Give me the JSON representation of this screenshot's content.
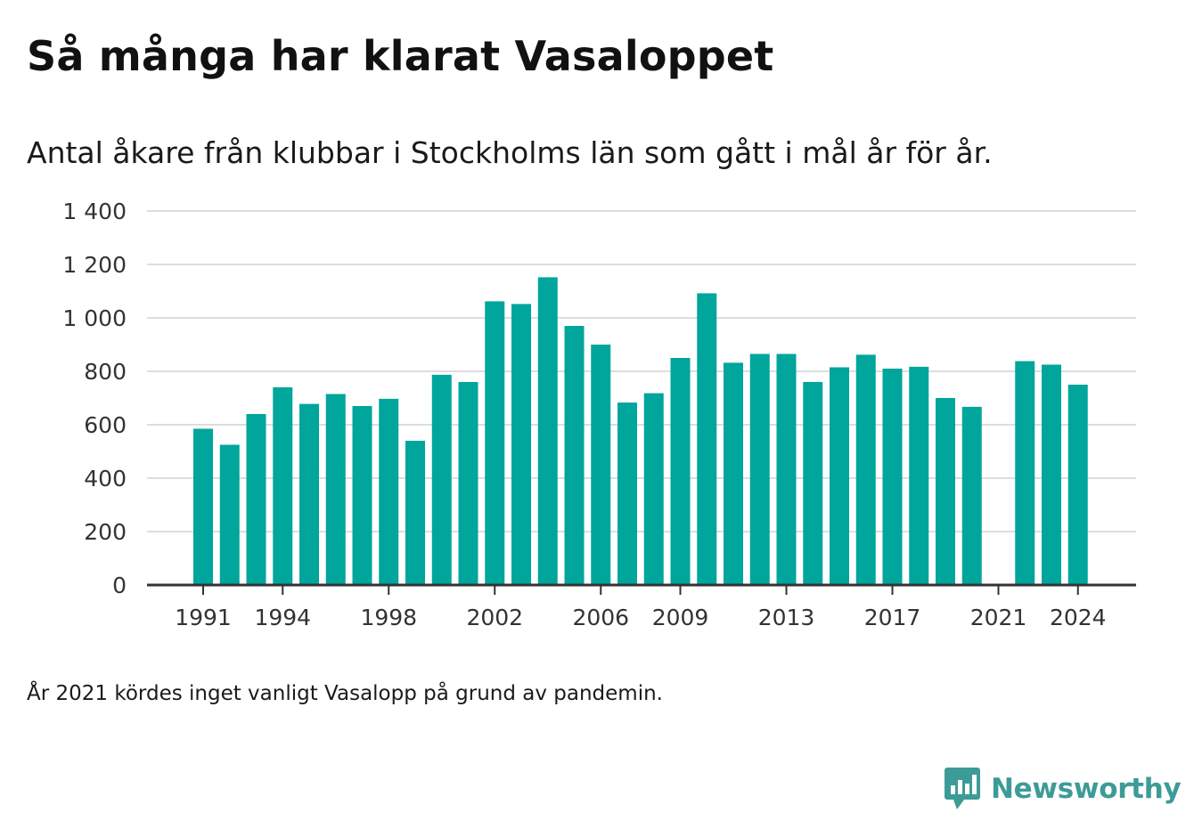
{
  "title": "Så många har klarat Vasaloppet",
  "subtitle": "Antal åkare från klubbar i Stockholms län som gått i mål år för år.",
  "note": "År 2021 kördes inget vanligt Vasalopp på grund av pandemin.",
  "brand": {
    "name": "Newsworthy",
    "color": "#3d9b97"
  },
  "chart_data": {
    "type": "bar",
    "x": [
      1991,
      1992,
      1993,
      1994,
      1995,
      1996,
      1997,
      1998,
      1999,
      2000,
      2001,
      2002,
      2003,
      2004,
      2005,
      2006,
      2007,
      2008,
      2009,
      2010,
      2011,
      2012,
      2013,
      2014,
      2015,
      2016,
      2017,
      2018,
      2019,
      2020,
      2021,
      2022,
      2023,
      2024
    ],
    "values": [
      585,
      525,
      640,
      740,
      678,
      715,
      670,
      697,
      540,
      787,
      760,
      1062,
      1052,
      1152,
      970,
      900,
      683,
      718,
      850,
      1092,
      832,
      865,
      865,
      760,
      815,
      862,
      810,
      817,
      700,
      667,
      null,
      838,
      825,
      750
    ],
    "x_tick_labels": [
      "1991",
      "1994",
      "1998",
      "2002",
      "2006",
      "2009",
      "2013",
      "2017",
      "2021",
      "2024"
    ],
    "y_ticks": [
      0,
      200,
      400,
      600,
      800,
      1000,
      1200,
      1400
    ],
    "y_tick_labels": [
      "0",
      "200",
      "400",
      "600",
      "800",
      "1 000",
      "1 200",
      "1 400"
    ],
    "ylim": [
      0,
      1400
    ],
    "grid": true,
    "bar_color": "#00a59b",
    "grid_color": "#dddddd",
    "axis_color": "#333333"
  }
}
